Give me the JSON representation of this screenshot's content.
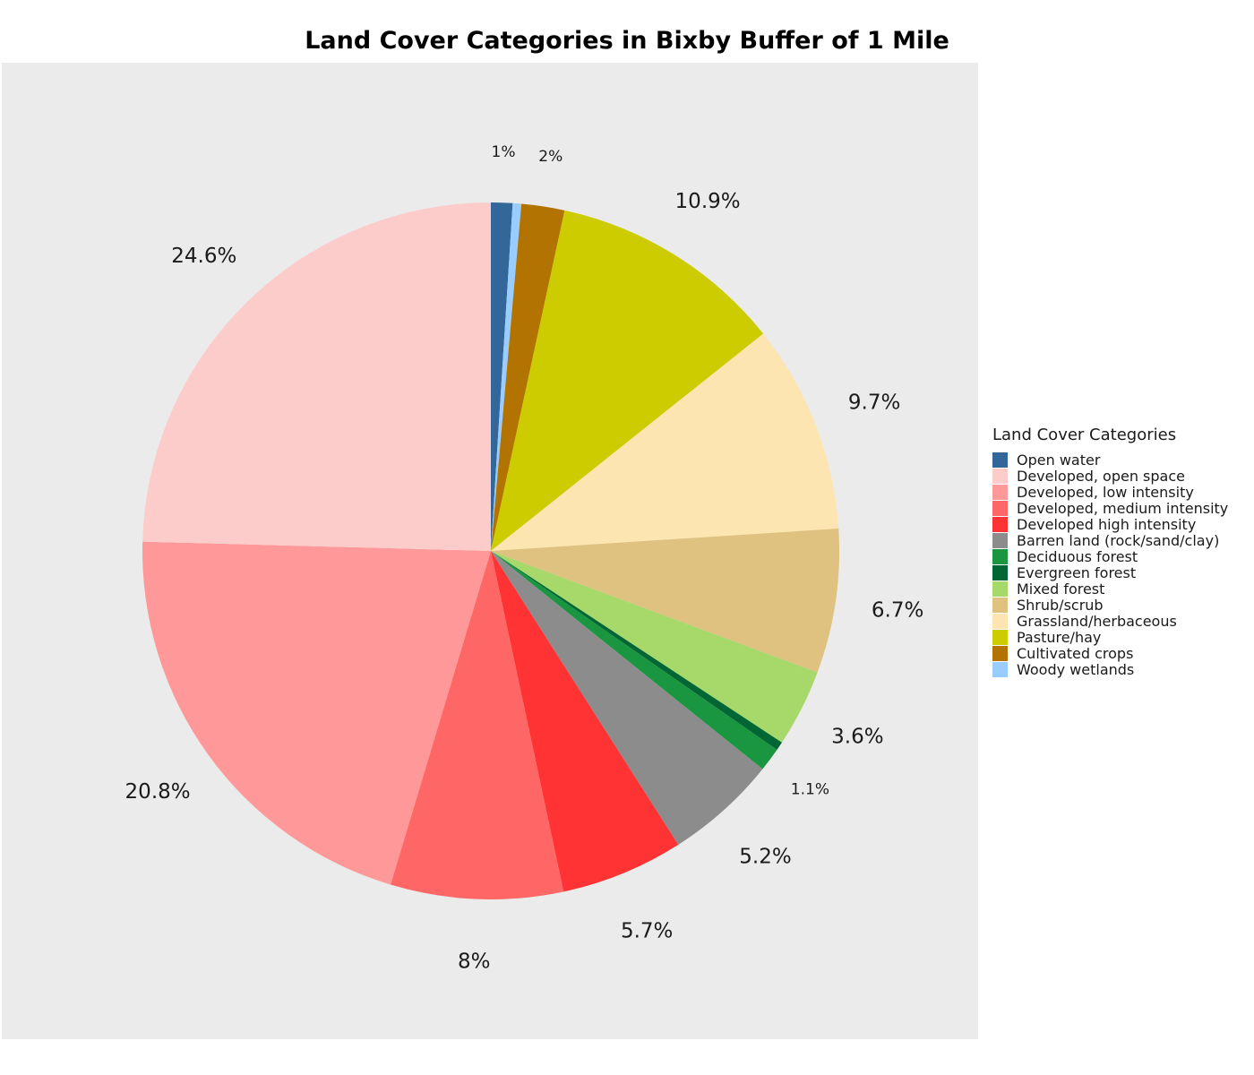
{
  "chart_data": {
    "type": "pie",
    "title": "Land Cover Categories in Bixby Buffer of 1 Mile",
    "legend_title": "Land Cover Categories",
    "legend_position": "right",
    "slices": [
      {
        "name": "Open water",
        "value": 1.0,
        "label": "1%",
        "color": "#336699"
      },
      {
        "name": "Woody wetlands",
        "value": 0.4,
        "label": "",
        "color": "#99ccff"
      },
      {
        "name": "Cultivated crops",
        "value": 2.0,
        "label": "2%",
        "color": "#b37300"
      },
      {
        "name": "Pasture/hay",
        "value": 10.9,
        "label": "10.9%",
        "color": "#cccc00"
      },
      {
        "name": "Grassland/herbaceous",
        "value": 9.7,
        "label": "9.7%",
        "color": "#fde5b2"
      },
      {
        "name": "Shrub/scrub",
        "value": 6.7,
        "label": "6.7%",
        "color": "#dfc27f"
      },
      {
        "name": "Mixed forest",
        "value": 3.6,
        "label": "3.6%",
        "color": "#a6d96a"
      },
      {
        "name": "Evergreen forest",
        "value": 0.4,
        "label": "",
        "color": "#006633"
      },
      {
        "name": "Deciduous forest",
        "value": 1.1,
        "label": "1.1%",
        "color": "#1a9641"
      },
      {
        "name": "Barren land (rock/sand/clay)",
        "value": 5.2,
        "label": "5.2%",
        "color": "#8c8c8c"
      },
      {
        "name": "Developed high intensity",
        "value": 5.7,
        "label": "5.7%",
        "color": "#ff3333"
      },
      {
        "name": "Developed, medium intensity",
        "value": 8.0,
        "label": "8%",
        "color": "#ff6666"
      },
      {
        "name": "Developed, low intensity",
        "value": 20.8,
        "label": "20.8%",
        "color": "#ff9999"
      },
      {
        "name": "Developed, open space",
        "value": 24.6,
        "label": "24.6%",
        "color": "#fccccb"
      }
    ],
    "legend_order": [
      "Open water",
      "Developed, open space",
      "Developed, low intensity",
      "Developed, medium intensity",
      "Developed high intensity",
      "Barren land (rock/sand/clay)",
      "Deciduous forest",
      "Evergreen forest",
      "Mixed forest",
      "Shrub/scrub",
      "Grassland/herbaceous",
      "Pasture/hay",
      "Cultivated crops",
      "Woody wetlands"
    ]
  }
}
